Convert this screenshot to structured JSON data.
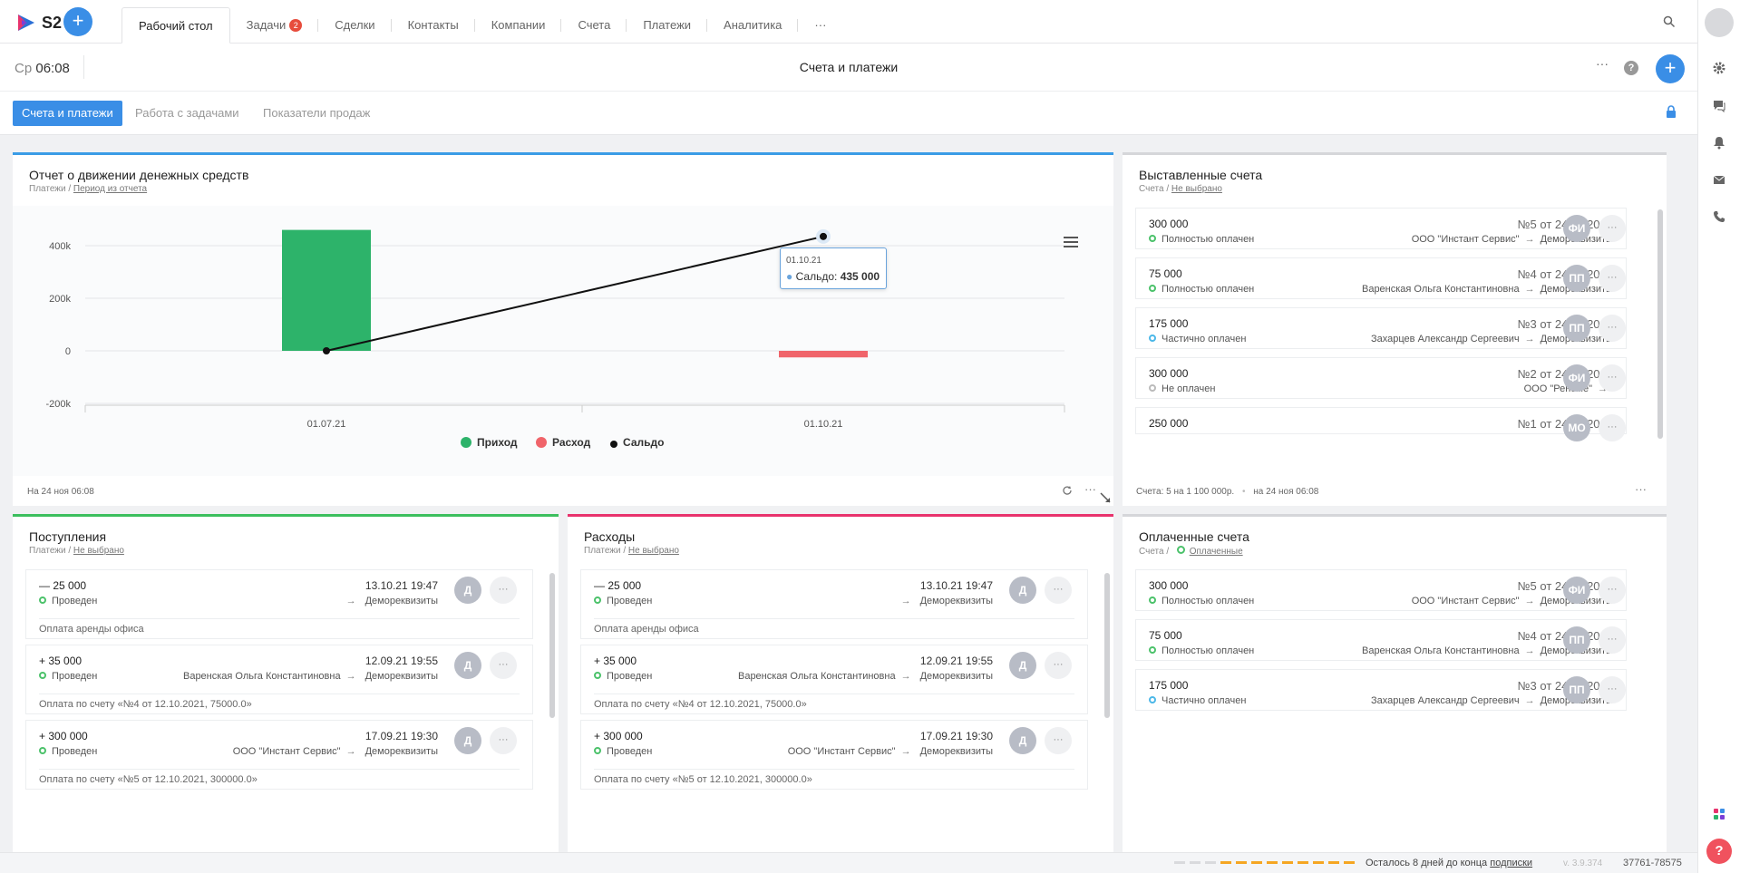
{
  "topbar": {
    "logo_text": "S2",
    "tabs": [
      {
        "label": "Рабочий стол",
        "active": true
      },
      {
        "label": "Задачи",
        "badge": "2"
      },
      {
        "label": "Сделки"
      },
      {
        "label": "Контакты"
      },
      {
        "label": "Компании"
      },
      {
        "label": "Счета"
      },
      {
        "label": "Платежи"
      },
      {
        "label": "Аналитика"
      },
      {
        "label": "···"
      }
    ]
  },
  "header": {
    "day": "Ср",
    "time": "06:08",
    "title": "Счета и платежи",
    "more": "···",
    "help": "?"
  },
  "subtabs": [
    {
      "label": "Счета и платежи",
      "active": true
    },
    {
      "label": "Работа с задачами"
    },
    {
      "label": "Показатели продаж"
    }
  ],
  "cashflow": {
    "title": "Отчет о движении денежных средств",
    "sub_prefix": "Платежи /",
    "sub_link": "Период из отчета",
    "footer": "На 24 ноя 06:08",
    "tooltip_date": "01.10.21",
    "tooltip_label": "Сальдо:",
    "tooltip_value": "435 000",
    "accent": "#3a9ce6"
  },
  "chart_data": {
    "type": "bar",
    "categories": [
      "01.07.21",
      "01.10.21"
    ],
    "y_ticks": [
      "400k",
      "200k",
      "0",
      "-200k"
    ],
    "ylim": [
      -200000,
      400000
    ],
    "series": [
      {
        "name": "Приход",
        "type": "bar",
        "color": "#2db36a",
        "values": [
          460000,
          0
        ]
      },
      {
        "name": "Расход",
        "type": "bar",
        "color": "#f0646a",
        "values": [
          0,
          -25000
        ]
      },
      {
        "name": "Сальдо",
        "type": "line",
        "color": "#111111",
        "values": [
          0,
          435000
        ]
      }
    ],
    "legend_position": "bottom",
    "grid": true
  },
  "issued": {
    "title": "Выставленные счета",
    "sub_prefix": "Счета /",
    "sub_link": "Не выбрано",
    "footer_count": "Счета: 5 на 1 100 000р.",
    "footer_date": "на 24 ноя 06:08",
    "more": "···",
    "items": [
      {
        "amount": "300 000",
        "number": "№5 от 24/11/2021",
        "status": "Полностью оплачен",
        "from": "ООО \"Инстант Сервис\"",
        "to": "Деморeквизиты",
        "initials": "ФИ",
        "state": "full"
      },
      {
        "amount": "75 000",
        "number": "№4 от 24/11/2021",
        "status": "Полностью оплачен",
        "from": "Варенская Ольга Константиновна",
        "to": "Деморeквизиты",
        "initials": "ПП",
        "state": "full"
      },
      {
        "amount": "175 000",
        "number": "№3 от 24/11/2021",
        "status": "Частично оплачен",
        "from": "Захарцев Александр Сергеевич",
        "to": "Деморeквизиты",
        "initials": "ПП",
        "state": "part"
      },
      {
        "amount": "300 000",
        "number": "№2 от 24/11/2021",
        "status": "Не оплачен",
        "from": "ООО \"Реноме\"",
        "to": "",
        "initials": "ФИ",
        "state": "none"
      },
      {
        "amount": "250 000",
        "number": "№1 от 24/11/2021",
        "status": "",
        "from": "",
        "to": "",
        "initials": "МО",
        "state": "none"
      }
    ]
  },
  "incoming": {
    "title": "Поступления",
    "sub_prefix": "Платежи /",
    "sub_link": "Не выбрано",
    "accent": "#3cbf5e",
    "items": [
      {
        "amount": "— 25 000",
        "date": "13.10.21 19:47",
        "status": "Проведен",
        "from": "",
        "to": "Деморeквизиты",
        "initials": "Д",
        "desc": "Оплата аренды офиса"
      },
      {
        "amount": "+ 35 000",
        "date": "12.09.21 19:55",
        "status": "Проведен",
        "from": "Варенская Ольга Константиновна",
        "to": "Деморeквизиты",
        "initials": "Д",
        "desc": "Оплата по счету «№4 от 12.10.2021, 75000.0»"
      },
      {
        "amount": "+ 300 000",
        "date": "17.09.21 19:30",
        "status": "Проведен",
        "from": "ООО \"Инстант Сервис\"",
        "to": "Деморeквизиты",
        "initials": "Д",
        "desc": "Оплата по счету «№5 от 12.10.2021, 300000.0»"
      }
    ]
  },
  "expenses": {
    "title": "Расходы",
    "sub_prefix": "Платежи /",
    "sub_link": "Не выбрано",
    "accent": "#e8336d",
    "items": [
      {
        "amount": "— 25 000",
        "date": "13.10.21 19:47",
        "status": "Проведен",
        "from": "",
        "to": "Деморeквизиты",
        "initials": "Д",
        "desc": "Оплата аренды офиса"
      },
      {
        "amount": "+ 35 000",
        "date": "12.09.21 19:55",
        "status": "Проведен",
        "from": "Варенская Ольга Константиновна",
        "to": "Деморeквизиты",
        "initials": "Д",
        "desc": "Оплата по счету «№4 от 12.10.2021, 75000.0»"
      },
      {
        "amount": "+ 300 000",
        "date": "17.09.21 19:30",
        "status": "Проведен",
        "from": "ООО \"Инстант Сервис\"",
        "to": "Деморeквизиты",
        "initials": "Д",
        "desc": "Оплата по счету «№5 от 12.10.2021, 300000.0»"
      }
    ]
  },
  "paid": {
    "title": "Оплаченные счета",
    "sub_prefix": "Счета /",
    "sub_link": "Оплаченные",
    "items": [
      {
        "amount": "300 000",
        "number": "№5 от 24/11/2021",
        "status": "Полностью оплачен",
        "from": "ООО \"Инстант Сервис\"",
        "to": "Деморeквизиты",
        "initials": "ФИ",
        "state": "full"
      },
      {
        "amount": "75 000",
        "number": "№4 от 24/11/2021",
        "status": "Полностью оплачен",
        "from": "Варенская Ольга Константиновна",
        "to": "Деморeквизиты",
        "initials": "ПП",
        "state": "full"
      },
      {
        "amount": "175 000",
        "number": "№3 от 24/11/2021",
        "status": "Частично оплачен",
        "from": "Захарцев Александр Сергеевич",
        "to": "Деморeквизиты",
        "initials": "ПП",
        "state": "part"
      }
    ]
  },
  "statusbar": {
    "trial_text": "Осталось 8 дней до конца",
    "trial_link": "подписки",
    "version": "v. 3.9.374",
    "account": "37761-78575",
    "progress": 0.73
  }
}
